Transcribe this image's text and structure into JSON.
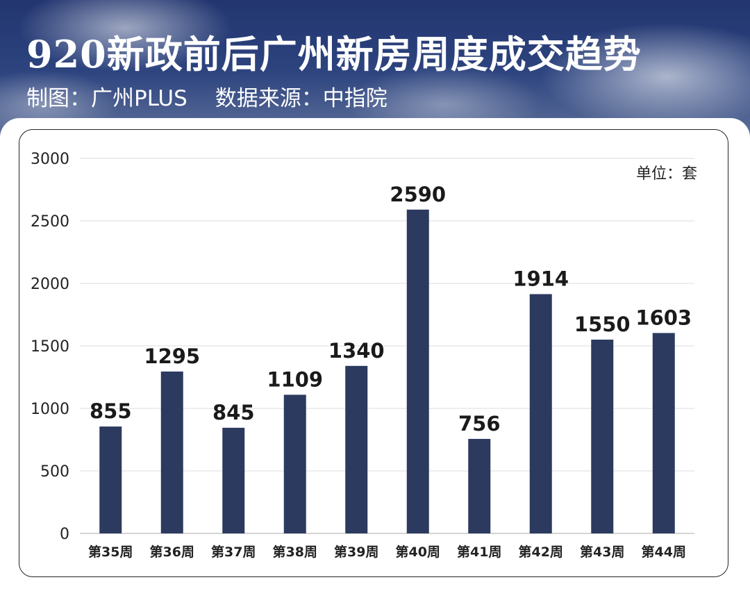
{
  "header": {
    "title": "920新政前后广州新房周度成交趋势",
    "credit": "制图：广州PLUS",
    "source": "数据来源：中指院"
  },
  "colors": {
    "bar": "#2b3a5e",
    "header_bg": "#2b417d",
    "grid": "#e3e3e3",
    "text": "#222222"
  },
  "chart_data": {
    "type": "bar",
    "title": "920新政前后广州新房周度成交趋势",
    "unit_label": "单位：套",
    "categories": [
      "第35周",
      "第36周",
      "第37周",
      "第38周",
      "第39周",
      "第40周",
      "第41周",
      "第42周",
      "第43周",
      "第44周"
    ],
    "values": [
      855,
      1295,
      845,
      1109,
      1340,
      2590,
      756,
      1914,
      1550,
      1603
    ],
    "value_labels": [
      "855",
      "1295",
      "845",
      "1109",
      "1340",
      "2590",
      "756",
      "1914",
      "1550",
      "1603"
    ],
    "ylim": [
      0,
      3000
    ],
    "yticks": [
      "0",
      "500",
      "1000",
      "1500",
      "2000",
      "2500",
      "3000"
    ],
    "grid": true,
    "legend": "none"
  }
}
